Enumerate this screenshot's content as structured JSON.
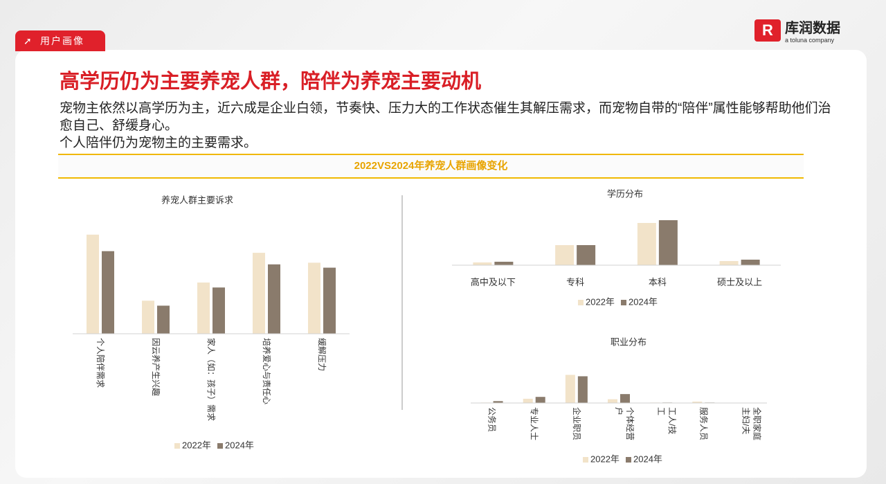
{
  "header": {
    "tag": "用户画像",
    "brand": "库润数据",
    "brand_sub": "a toluna company",
    "title": "高学历仍为主要养宠人群，陪伴为养宠主要动机",
    "body": [
      "宠物主依然以高学历为主，近六成是企业白领，节奏快、压力大的工作状态催生其解压需求，而宠物自带的“陪伴”属性能够帮助他们治愈自己、舒缓身心。",
      "个人陪伴仍为宠物主的主要需求。"
    ],
    "section": "2022VS2024年养宠人群画像变化"
  },
  "chart_data": [
    {
      "type": "bar",
      "title": "养宠人群主要诉求",
      "label_mode": "vertical",
      "categories": [
        "个人陪伴需求",
        "因云养产生兴趣",
        "家人（如：孩子）需求",
        "培养爱心与责任心",
        "缓解压力"
      ],
      "series": [
        {
          "name": "2022年",
          "color": "#f2e3c9",
          "values": [
            60,
            20,
            31,
            49,
            43
          ]
        },
        {
          "name": "2024年",
          "color": "#8a7b6c",
          "values": [
            50,
            17,
            28,
            42,
            40
          ]
        }
      ],
      "ylim": [
        0,
        70
      ]
    },
    {
      "type": "bar",
      "title": "学历分布",
      "label_mode": "horizontal",
      "categories": [
        "高中及以下",
        "专科",
        "本科",
        "硕士及以上"
      ],
      "series": [
        {
          "name": "2022年",
          "color": "#f2e3c9",
          "values": [
            4,
            29,
            61,
            6
          ]
        },
        {
          "name": "2024年",
          "color": "#8a7b6c",
          "values": [
            5,
            29,
            65,
            8
          ]
        }
      ],
      "ylim": [
        0,
        70
      ]
    },
    {
      "type": "bar",
      "title": "职业分布",
      "label_mode": "vertical",
      "categories": [
        "公务员",
        "专业人士",
        "企业职员",
        "个体经营户",
        "工人/技工",
        "服务人员",
        "全职家庭主妇/夫"
      ],
      "series": [
        {
          "name": "2022年",
          "color": "#f2e3c9",
          "values": [
            1,
            9,
            60,
            8,
            1,
            3,
            0
          ]
        },
        {
          "name": "2024年",
          "color": "#8a7b6c",
          "values": [
            4,
            13,
            57,
            19,
            1,
            1,
            0
          ]
        }
      ],
      "ylim": [
        0,
        65
      ]
    }
  ]
}
